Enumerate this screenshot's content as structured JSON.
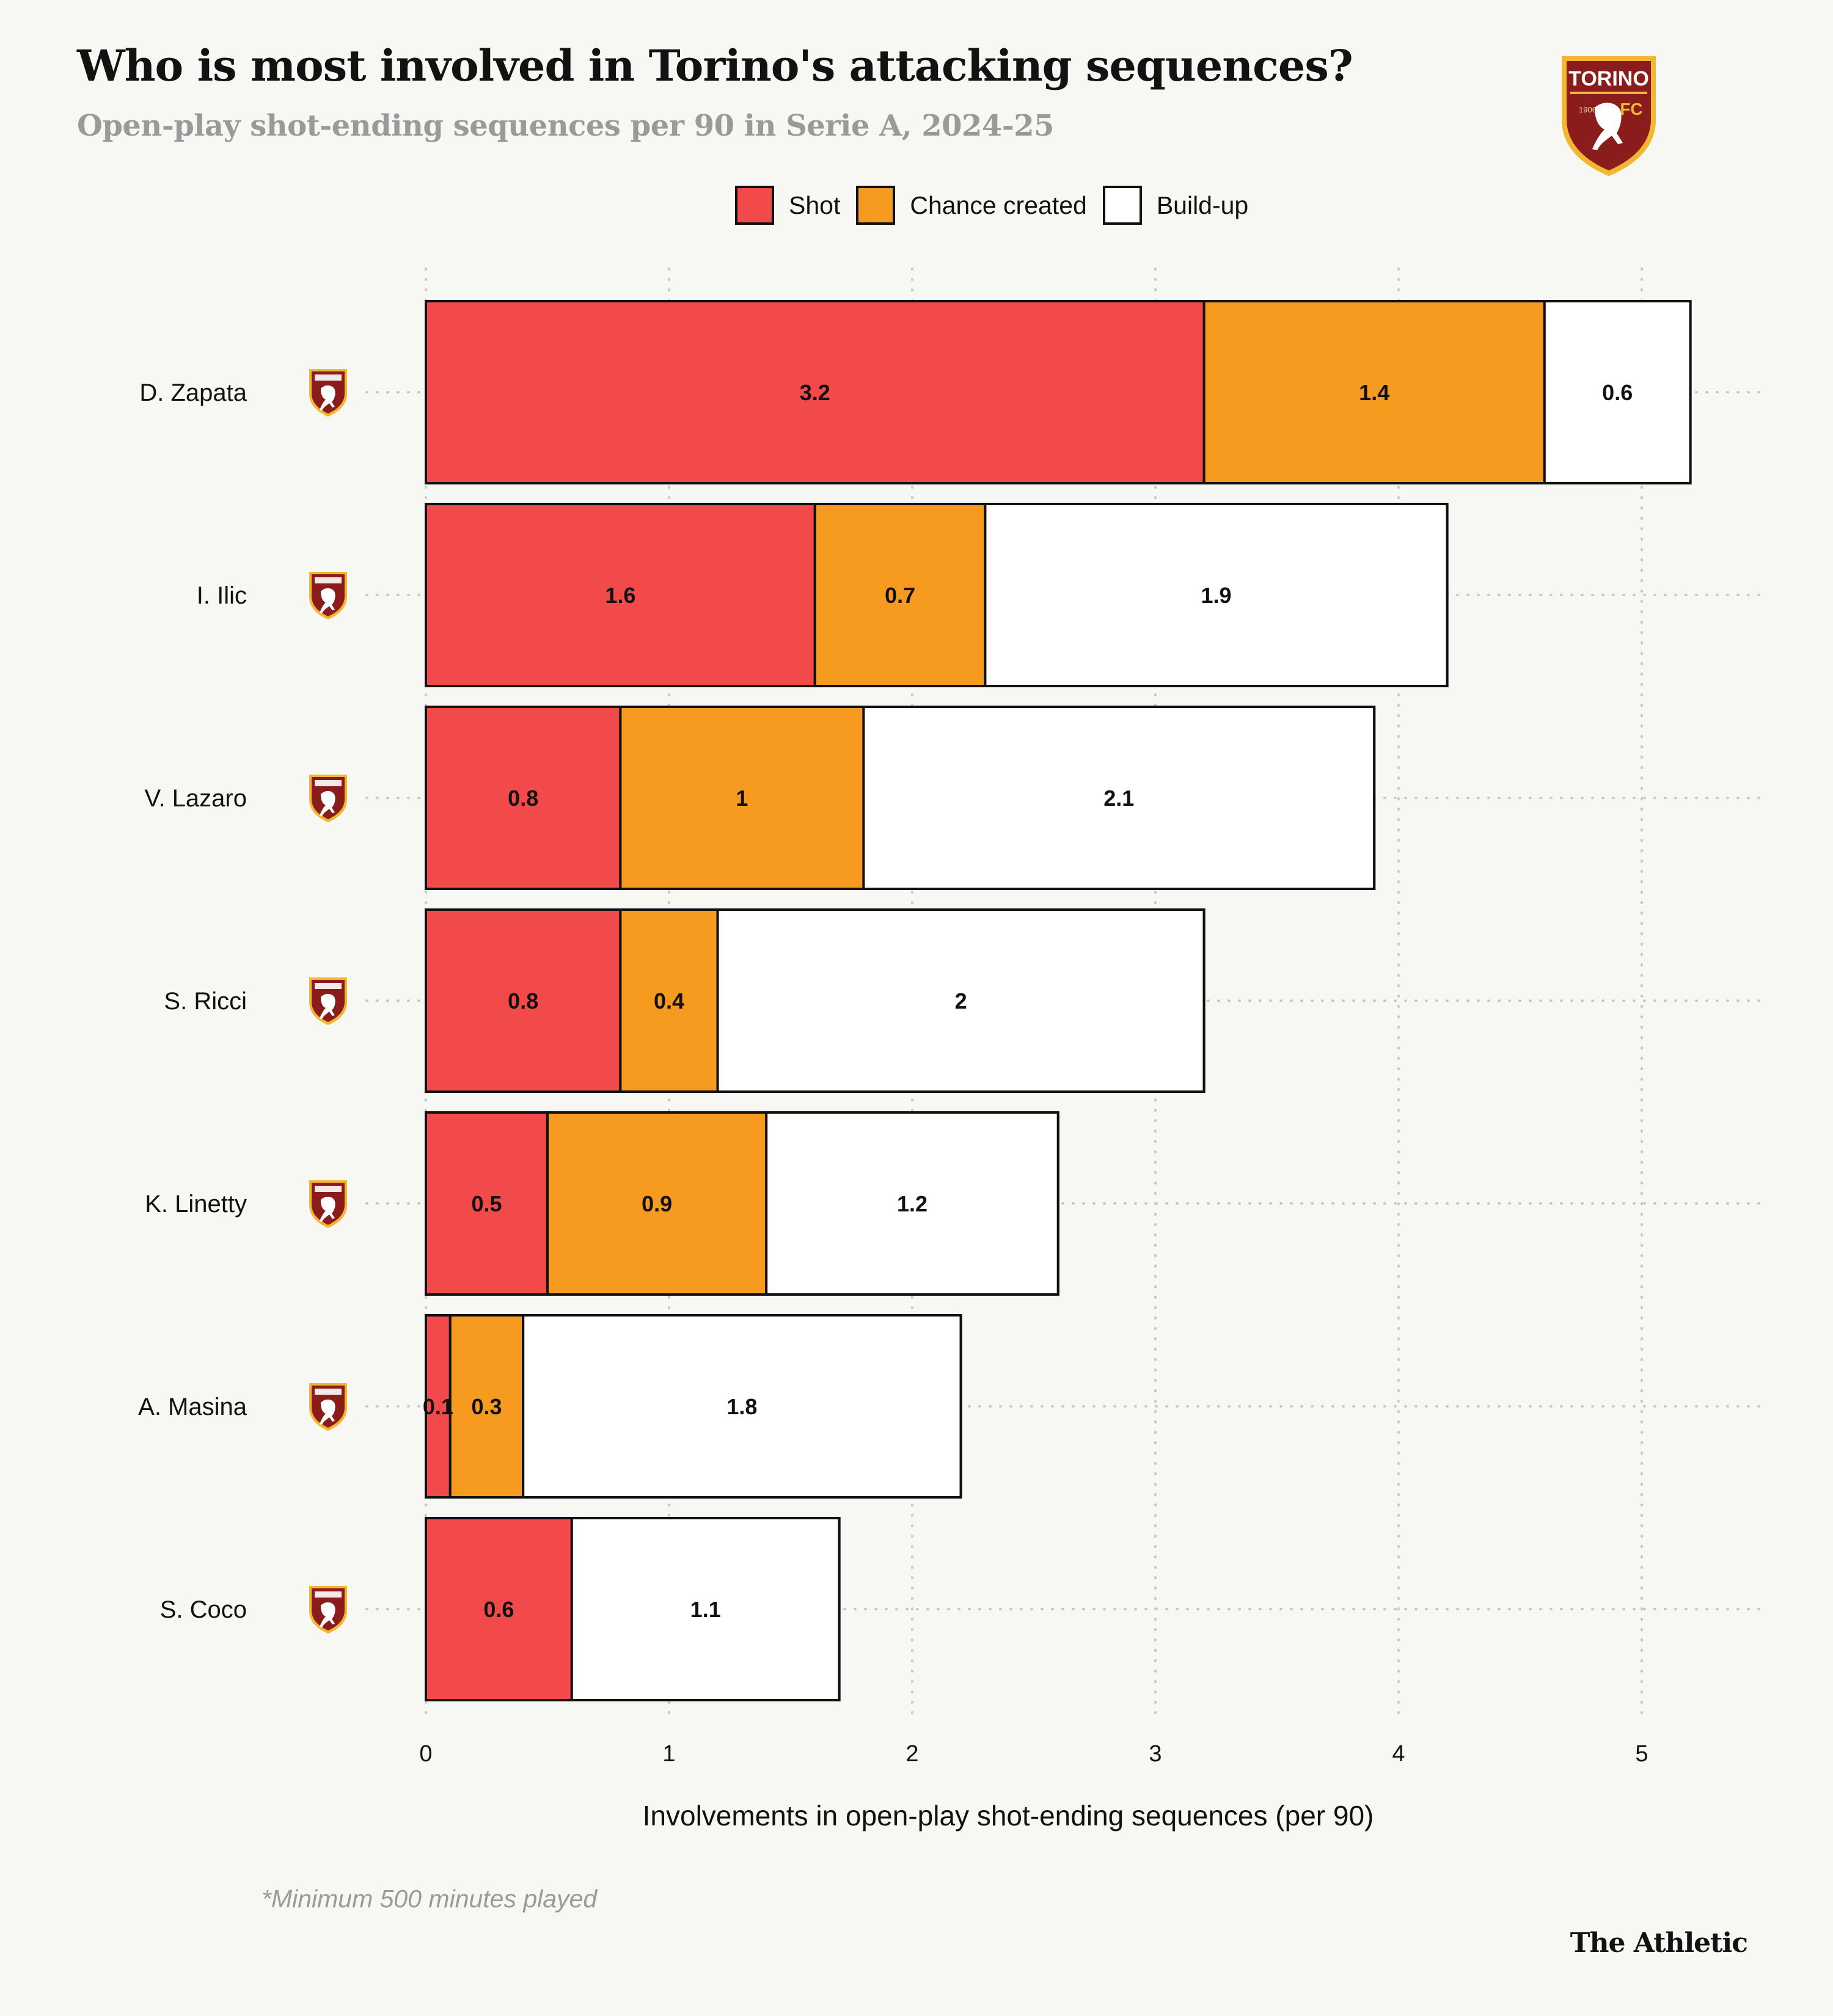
{
  "header": {
    "title": "Who is most involved in Torino's attacking sequences?",
    "subtitle": "Open-play shot-ending sequences per 90 in Serie A, 2024-25"
  },
  "logo": {
    "name": "TORINO",
    "year": "1906",
    "suffix": "FC"
  },
  "legend": {
    "items": [
      {
        "label": "Shot",
        "color": "#f24a4a"
      },
      {
        "label": "Chance created",
        "color": "#f79a20"
      },
      {
        "label": "Build-up",
        "color": "#ffffff"
      }
    ]
  },
  "footnote": "*Minimum 500 minutes played",
  "brand": "The Athletic",
  "chart_data": {
    "type": "bar",
    "orientation": "horizontal",
    "stacked": true,
    "categories": [
      "D. Zapata",
      "I. Ilic",
      "V. Lazaro",
      "S. Ricci",
      "K. Linetty",
      "A. Masina",
      "S. Coco"
    ],
    "series": [
      {
        "name": "Shot",
        "color": "#f24a4a",
        "values": [
          3.2,
          1.6,
          0.8,
          0.8,
          0.5,
          0.1,
          0.6
        ]
      },
      {
        "name": "Chance created",
        "color": "#f79a20",
        "values": [
          1.4,
          0.7,
          1,
          0.4,
          0.9,
          0.3,
          0
        ]
      },
      {
        "name": "Build-up",
        "color": "#ffffff",
        "values": [
          0.6,
          1.9,
          2.1,
          2,
          1.2,
          1.8,
          1.1
        ]
      }
    ],
    "xlabel": "Involvements in open-play shot-ending sequences (per 90)",
    "ylabel": "",
    "xlim": [
      0,
      5.4
    ],
    "xticks": [
      0,
      1,
      2,
      3,
      4,
      5
    ],
    "grid": true,
    "legend_position": "top-center"
  }
}
